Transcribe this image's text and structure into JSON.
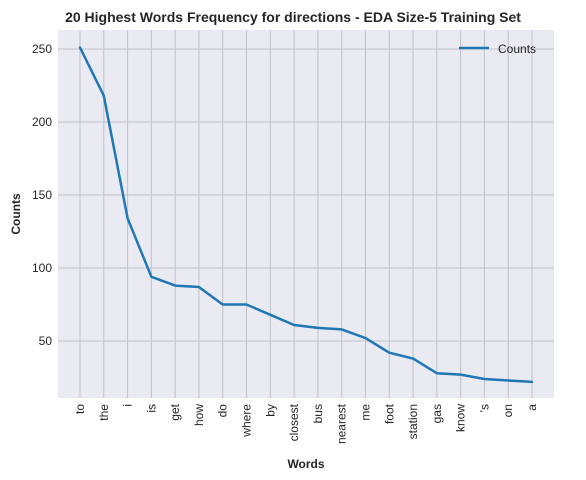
{
  "chart_data": {
    "type": "line",
    "title": "20 Highest Words Frequency for directions - EDA Size-5 Training Set",
    "xlabel": "Words",
    "ylabel": "Counts",
    "categories": [
      "to",
      "the",
      "i",
      "is",
      "get",
      "how",
      "do",
      "where",
      "by",
      "closest",
      "bus",
      "nearest",
      "me",
      "foot",
      "station",
      "gas",
      "know",
      "'s",
      "on",
      "a"
    ],
    "series": [
      {
        "name": "Counts",
        "color": "#1f77b4",
        "values": [
          251,
          218,
          134,
          94,
          88,
          87,
          75,
          75,
          68,
          61,
          59,
          58,
          52,
          42,
          38,
          28,
          27,
          24,
          23,
          22
        ]
      }
    ],
    "y_ticks": [
      50,
      100,
      150,
      200,
      250
    ],
    "ylim": [
      11,
      263
    ],
    "grid": true,
    "legend_position": "top-right",
    "background_color": "#eaeaf2",
    "grid_color": "#c0c0c8"
  }
}
